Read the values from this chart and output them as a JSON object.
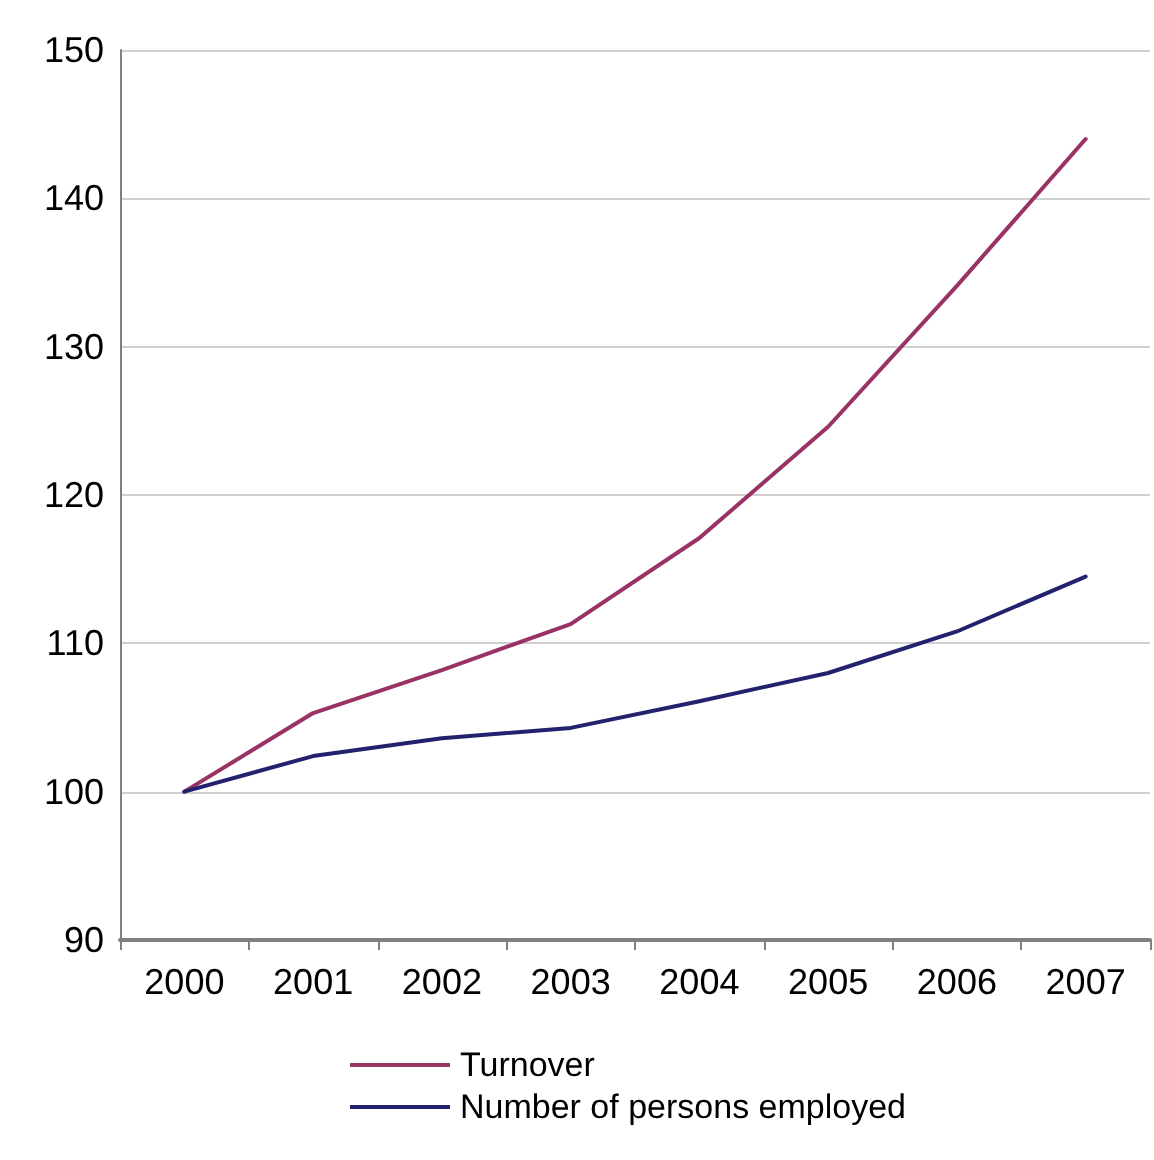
{
  "chart_data": {
    "type": "line",
    "categories": [
      "2000",
      "2001",
      "2002",
      "2003",
      "2004",
      "2005",
      "2006",
      "2007"
    ],
    "series": [
      {
        "name": "Turnover",
        "color": "#993366",
        "values": [
          100,
          105.3,
          108.2,
          111.3,
          117.1,
          124.6,
          134.1,
          144
        ]
      },
      {
        "name": "Number of persons employed",
        "color": "#22226e",
        "values": [
          100,
          102.4,
          103.6,
          104.3,
          106.1,
          108.0,
          110.8,
          114.5
        ]
      }
    ],
    "ylim": [
      90,
      150
    ],
    "yticks": [
      90,
      100,
      110,
      120,
      130,
      140,
      150
    ],
    "grid": "y",
    "legend": "bottom",
    "marker": "none",
    "line_style": "solid"
  }
}
